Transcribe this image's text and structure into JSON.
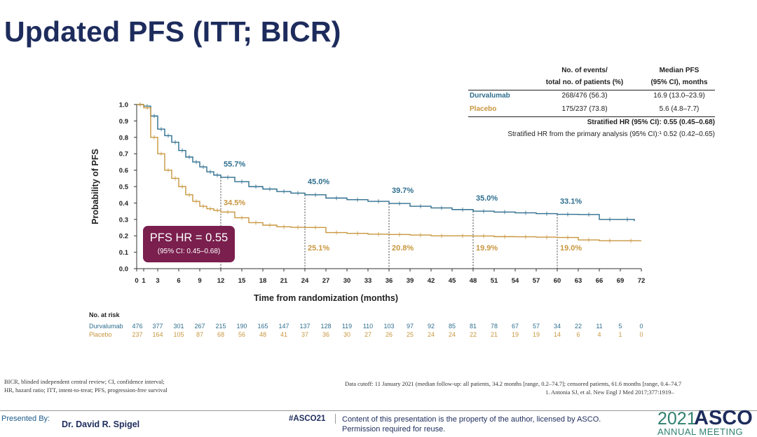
{
  "slide": {
    "title": "Updated PFS (ITT; BICR)",
    "hr_box": {
      "main": "PFS HR = 0.55",
      "ci": "(95% CI: 0.45–0.68)"
    }
  },
  "table": {
    "col1_header": [
      "No. of events/",
      "total no. of patients (%)"
    ],
    "col2_header": [
      "Median PFS",
      "(95% CI), months"
    ],
    "rows": [
      {
        "name": "Durvalumab",
        "events": "268/476 (56.3)",
        "median": "16.9 (13.0–23.9)",
        "color": "#2e6e8e"
      },
      {
        "name": "Placebo",
        "events": "175/237 (73.8)",
        "median": "5.6 (4.8–7.7)",
        "color": "#c8963e"
      }
    ],
    "stratified_hr": "Stratified HR (95% CI): 0.55 (0.45–0.68)",
    "primary_hr": "Stratified HR from the primary analysis (95% CI):¹ 0.52 (0.42–0.65)"
  },
  "chart_data": {
    "type": "line",
    "xlabel": "Time from randomization (months)",
    "ylabel": "Probability of PFS",
    "xlim": [
      0,
      72
    ],
    "ylim": [
      0,
      1.0
    ],
    "x_ticks": [
      0,
      1,
      3,
      6,
      9,
      12,
      15,
      18,
      21,
      24,
      27,
      30,
      33,
      36,
      39,
      42,
      45,
      48,
      51,
      54,
      57,
      60,
      63,
      66,
      69,
      72
    ],
    "y_ticks": [
      "0.0",
      "0.1",
      "0.2",
      "0.3",
      "0.4",
      "0.5",
      "0.6",
      "0.7",
      "0.8",
      "0.9",
      "1.0"
    ],
    "series": [
      {
        "name": "Durvalumab",
        "color": "#2e6e8e",
        "x": [
          0,
          1,
          2,
          3,
          4,
          5,
          6,
          7,
          8,
          9,
          10,
          11,
          12,
          14,
          16,
          18,
          20,
          22,
          24,
          27,
          30,
          33,
          36,
          39,
          42,
          45,
          48,
          51,
          54,
          57,
          60,
          63,
          66,
          69,
          71
        ],
        "y": [
          1.0,
          0.99,
          0.93,
          0.85,
          0.81,
          0.77,
          0.72,
          0.68,
          0.65,
          0.62,
          0.59,
          0.57,
          0.557,
          0.53,
          0.5,
          0.485,
          0.47,
          0.46,
          0.45,
          0.43,
          0.42,
          0.41,
          0.397,
          0.38,
          0.37,
          0.36,
          0.35,
          0.345,
          0.34,
          0.335,
          0.331,
          0.33,
          0.3,
          0.3,
          0.29
        ]
      },
      {
        "name": "Placebo",
        "color": "#c8963e",
        "x": [
          0,
          1,
          2,
          3,
          4,
          5,
          6,
          7,
          8,
          9,
          10,
          11,
          12,
          14,
          16,
          18,
          20,
          22,
          24,
          27,
          30,
          33,
          36,
          39,
          42,
          45,
          48,
          51,
          54,
          57,
          60,
          63,
          66,
          69,
          72
        ],
        "y": [
          1.0,
          0.98,
          0.8,
          0.7,
          0.6,
          0.55,
          0.5,
          0.45,
          0.41,
          0.38,
          0.365,
          0.355,
          0.345,
          0.31,
          0.28,
          0.265,
          0.255,
          0.252,
          0.251,
          0.22,
          0.215,
          0.21,
          0.208,
          0.205,
          0.2,
          0.2,
          0.199,
          0.195,
          0.194,
          0.192,
          0.19,
          0.175,
          0.17,
          0.17,
          0.17
        ]
      }
    ],
    "annotations_durvalumab": [
      {
        "x": 12,
        "y": 0.557,
        "label": "55.7%"
      },
      {
        "x": 24,
        "y": 0.45,
        "label": "45.0%"
      },
      {
        "x": 36,
        "y": 0.397,
        "label": "39.7%"
      },
      {
        "x": 48,
        "y": 0.35,
        "label": "35.0%"
      },
      {
        "x": 60,
        "y": 0.331,
        "label": "33.1%"
      }
    ],
    "annotations_placebo": [
      {
        "x": 12,
        "y": 0.345,
        "label": "34.5%"
      },
      {
        "x": 24,
        "y": 0.251,
        "label": "25.1%"
      },
      {
        "x": 36,
        "y": 0.208,
        "label": "20.8%"
      },
      {
        "x": 48,
        "y": 0.199,
        "label": "19.9%"
      },
      {
        "x": 60,
        "y": 0.19,
        "label": "19.0%"
      }
    ],
    "at_risk": {
      "label": "No. at risk",
      "times": [
        0,
        3,
        6,
        9,
        12,
        15,
        18,
        21,
        24,
        27,
        30,
        33,
        36,
        39,
        42,
        45,
        48,
        51,
        54,
        57,
        60,
        63,
        66,
        69,
        72
      ],
      "rows": [
        {
          "name": "Durvalumab",
          "color": "#2e6e8e",
          "values": [
            "476",
            "377",
            "301",
            "267",
            "215",
            "190",
            "165",
            "147",
            "137",
            "128",
            "119",
            "110",
            "103",
            "97",
            "92",
            "85",
            "81",
            "78",
            "67",
            "57",
            "34",
            "22",
            "11",
            "5",
            "0"
          ]
        },
        {
          "name": "Placebo",
          "color": "#c8963e",
          "values": [
            "237",
            "164",
            "105",
            "87",
            "68",
            "56",
            "48",
            "41",
            "37",
            "36",
            "30",
            "27",
            "26",
            "25",
            "24",
            "24",
            "22",
            "21",
            "19",
            "19",
            "14",
            "6",
            "4",
            "1",
            "0"
          ]
        }
      ]
    }
  },
  "footnotes": {
    "left_1": "BICR, blinded independent central review; CI, confidence interval;",
    "left_2": "HR, hazard ratio; ITT, intent-to-treat; PFS, progression-free survival",
    "right_1": "Data cutoff: 11 January 2021 (median follow-up: all patients, 34.2 months [range, 0.2–74.7]; censored patients, 61.6 months [range, 0.4–74.7",
    "right_2": "1. Antonia SJ, et al. New Engl J Med 2017;377:1919–"
  },
  "footer": {
    "presented_by": "Presented By:",
    "presenter": "Dr. David R. Spigel",
    "hashtag": "#ASCO21",
    "notice": "Content of this presentation is the property of the author, licensed by ASCO. Permission required for reuse.",
    "asco_year": "2021",
    "asco_name": "ASCO",
    "asco_sub": "ANNUAL MEETING"
  }
}
